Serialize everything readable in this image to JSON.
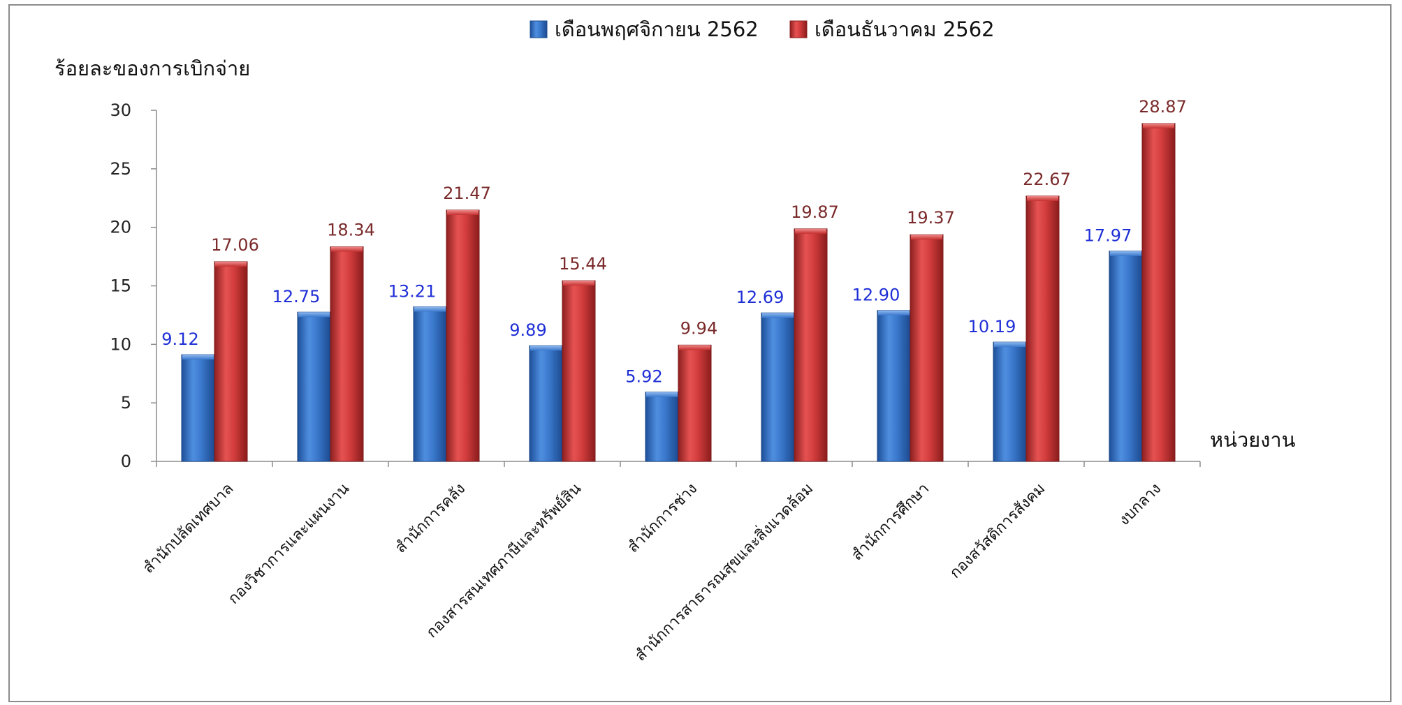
{
  "chart_data": {
    "type": "bar",
    "ylabel": "ร้อยละของการเบิกจ่าย",
    "xlabel": "หน่วยงาน",
    "ylim": [
      0,
      30
    ],
    "yticks": [
      0,
      5,
      10,
      15,
      20,
      25,
      30
    ],
    "grid": false,
    "legend_position": "top-center",
    "categories": [
      "สำนักปลัดเทศบาล",
      "กองวิชาการและแผนงาน",
      "สำนักการคลัง",
      "กองสารสนเทศภาษีและทรัพย์สิน",
      "สำนักการช่าง",
      "สำนักการสาธารณสุขและสิ่งแวดล้อม",
      "สำนักการศึกษา",
      "กองสวัสดิการสังคม",
      "งบกลาง"
    ],
    "series": [
      {
        "name": "เดือนพฤศจิกายน 2562",
        "color": "#3a78cc",
        "values": [
          9.12,
          12.75,
          13.21,
          9.89,
          5.92,
          12.69,
          12.9,
          10.19,
          17.97
        ],
        "labels": [
          "9.12",
          "12.75",
          "13.21",
          "9.89",
          "5.92",
          "12.69",
          "12.90",
          "10.19",
          "17.97"
        ]
      },
      {
        "name": "เดือนธันวาคม 2562",
        "color": "#d23c3c",
        "values": [
          17.06,
          18.34,
          21.47,
          15.44,
          9.94,
          19.87,
          19.37,
          22.67,
          28.87
        ],
        "labels": [
          "17.06",
          "18.34",
          "21.47",
          "15.44",
          "9.94",
          "19.87",
          "19.37",
          "22.67",
          "28.87"
        ]
      }
    ]
  }
}
